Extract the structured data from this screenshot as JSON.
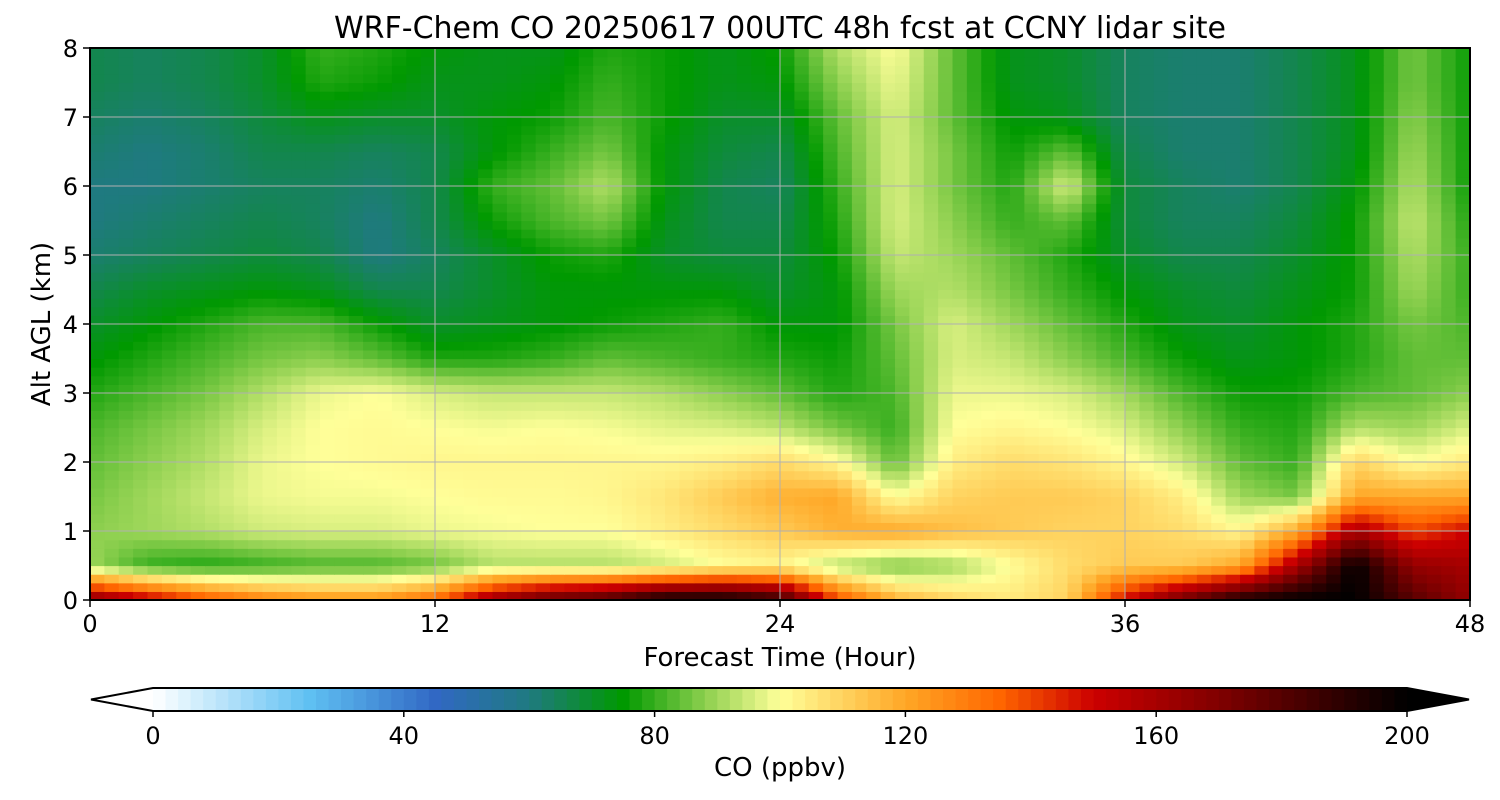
{
  "chart_data": {
    "type": "heatmap",
    "title": "WRF-Chem CO  20250617 00UTC 48h fcst at CCNY lidar site",
    "xlabel": "Forecast Time (Hour)",
    "ylabel": "Alt AGL (km)",
    "xlim": [
      0,
      48
    ],
    "ylim": [
      0,
      8
    ],
    "xticks": [
      0,
      12,
      24,
      36,
      48
    ],
    "yticks": [
      0,
      1,
      2,
      3,
      4,
      5,
      6,
      7,
      8
    ],
    "grid": true,
    "x": [
      0,
      2,
      4,
      6,
      8,
      10,
      12,
      14,
      16,
      18,
      20,
      22,
      24,
      26,
      28,
      30,
      32,
      34,
      36,
      38,
      40,
      42,
      44,
      46,
      48
    ],
    "y": [
      0.0,
      0.5,
      1.0,
      1.5,
      2.0,
      2.5,
      3.0,
      3.5,
      4.0,
      4.5,
      5.0,
      5.5,
      6.0,
      6.5,
      7.0,
      7.5,
      8.0
    ],
    "z": [
      [
        170,
        155,
        140,
        130,
        125,
        125,
        135,
        165,
        180,
        185,
        200,
        200,
        190,
        140,
        118,
        110,
        105,
        110,
        150,
        175,
        195,
        200,
        200,
        180,
        165
      ],
      [
        90,
        80,
        78,
        80,
        82,
        82,
        85,
        92,
        92,
        92,
        95,
        100,
        102,
        92,
        86,
        90,
        100,
        108,
        112,
        112,
        120,
        160,
        200,
        165,
        160
      ],
      [
        88,
        90,
        92,
        95,
        96,
        96,
        98,
        99,
        100,
        100,
        104,
        108,
        112,
        118,
        120,
        115,
        112,
        110,
        110,
        108,
        102,
        120,
        160,
        140,
        150
      ],
      [
        86,
        90,
        94,
        98,
        99,
        99,
        100,
        101,
        101,
        102,
        106,
        112,
        118,
        120,
        100,
        110,
        112,
        112,
        110,
        104,
        90,
        86,
        120,
        120,
        120
      ],
      [
        84,
        88,
        92,
        98,
        100,
        101,
        102,
        102,
        102,
        102,
        102,
        104,
        108,
        102,
        84,
        104,
        108,
        106,
        102,
        95,
        84,
        80,
        110,
        100,
        105
      ],
      [
        82,
        86,
        90,
        96,
        100,
        101,
        100,
        99,
        100,
        99,
        97,
        96,
        93,
        86,
        80,
        100,
        102,
        100,
        96,
        88,
        80,
        78,
        92,
        90,
        96
      ],
      [
        78,
        82,
        86,
        92,
        98,
        100,
        96,
        94,
        94,
        94,
        92,
        88,
        84,
        78,
        82,
        98,
        98,
        96,
        90,
        82,
        76,
        76,
        82,
        84,
        88
      ],
      [
        74,
        78,
        82,
        86,
        88,
        84,
        78,
        78,
        80,
        84,
        82,
        80,
        78,
        76,
        84,
        96,
        94,
        88,
        82,
        76,
        72,
        74,
        78,
        84,
        84
      ],
      [
        70,
        74,
        78,
        82,
        82,
        76,
        70,
        72,
        74,
        76,
        78,
        80,
        74,
        74,
        86,
        96,
        90,
        84,
        78,
        72,
        70,
        74,
        78,
        86,
        82
      ],
      [
        66,
        70,
        72,
        74,
        72,
        66,
        66,
        70,
        74,
        74,
        74,
        74,
        70,
        74,
        90,
        92,
        86,
        80,
        74,
        70,
        68,
        72,
        76,
        90,
        80
      ],
      [
        62,
        64,
        66,
        68,
        66,
        60,
        64,
        70,
        76,
        78,
        70,
        68,
        68,
        76,
        94,
        90,
        84,
        78,
        70,
        66,
        66,
        70,
        76,
        92,
        80
      ],
      [
        60,
        62,
        64,
        66,
        64,
        60,
        66,
        76,
        82,
        86,
        72,
        66,
        66,
        78,
        96,
        88,
        80,
        84,
        68,
        64,
        64,
        68,
        76,
        94,
        78
      ],
      [
        60,
        60,
        62,
        64,
        64,
        62,
        66,
        80,
        84,
        92,
        74,
        66,
        64,
        80,
        96,
        86,
        78,
        96,
        68,
        64,
        62,
        66,
        74,
        92,
        76
      ],
      [
        62,
        60,
        62,
        66,
        66,
        64,
        66,
        74,
        80,
        86,
        74,
        68,
        66,
        82,
        96,
        86,
        76,
        84,
        66,
        62,
        62,
        66,
        72,
        90,
        76
      ],
      [
        64,
        62,
        64,
        68,
        72,
        70,
        70,
        74,
        76,
        82,
        76,
        70,
        70,
        84,
        96,
        84,
        74,
        72,
        64,
        62,
        62,
        66,
        72,
        88,
        76
      ],
      [
        66,
        64,
        66,
        70,
        78,
        76,
        72,
        72,
        74,
        80,
        76,
        72,
        74,
        88,
        98,
        84,
        72,
        70,
        64,
        62,
        62,
        66,
        72,
        86,
        76
      ],
      [
        66,
        64,
        66,
        70,
        80,
        78,
        74,
        72,
        72,
        78,
        76,
        72,
        76,
        92,
        100,
        84,
        72,
        70,
        64,
        62,
        62,
        66,
        72,
        86,
        76
      ]
    ],
    "colorbar": {
      "label": "CO  (ppbv)",
      "ticks": [
        0,
        40,
        80,
        120,
        160,
        200
      ],
      "range": [
        0,
        200
      ],
      "extend": "both",
      "stops": [
        {
          "v": 0,
          "c": "#ffffff"
        },
        {
          "v": 10,
          "c": "#bfe6fb"
        },
        {
          "v": 25,
          "c": "#5fc0f2"
        },
        {
          "v": 45,
          "c": "#3168c4"
        },
        {
          "v": 60,
          "c": "#1f7a80"
        },
        {
          "v": 75,
          "c": "#009900"
        },
        {
          "v": 88,
          "c": "#8ccf4e"
        },
        {
          "v": 100,
          "c": "#ffff99"
        },
        {
          "v": 120,
          "c": "#ffa726"
        },
        {
          "v": 135,
          "c": "#ff6600"
        },
        {
          "v": 150,
          "c": "#cc0000"
        },
        {
          "v": 170,
          "c": "#800000"
        },
        {
          "v": 200,
          "c": "#000000"
        }
      ]
    }
  }
}
